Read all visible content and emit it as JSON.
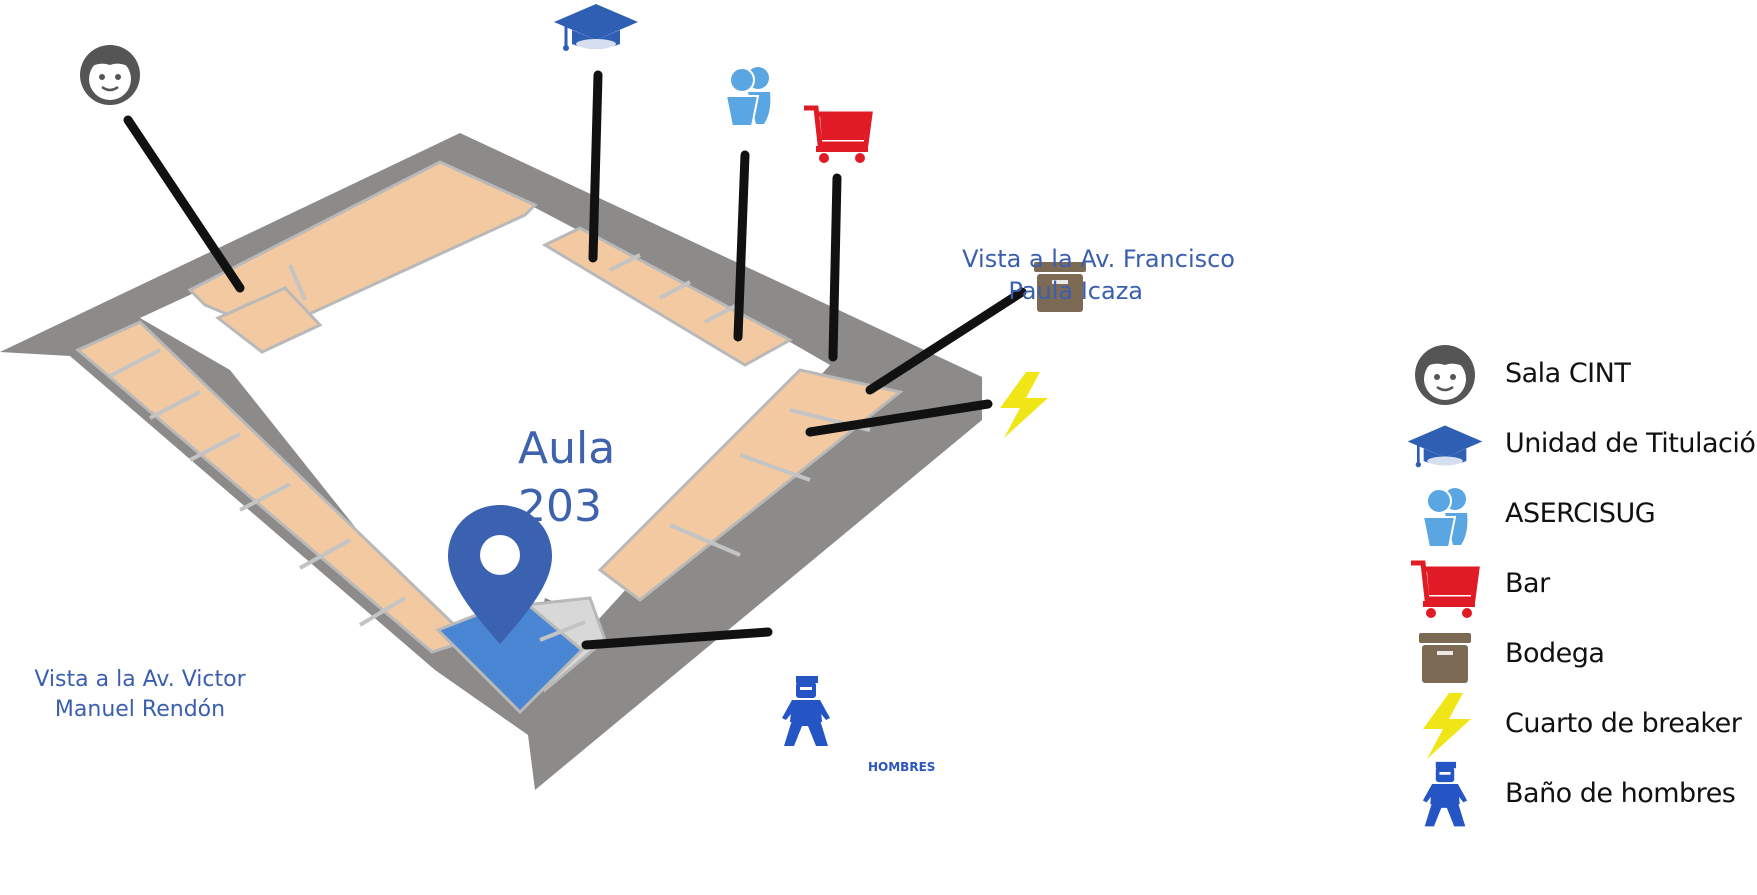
{
  "map": {
    "room_label": [
      "Aula",
      "203"
    ],
    "view_left": [
      "Vista a la Av.  Victor",
      "Manuel Rendón"
    ],
    "view_right": [
      "Vista a la Av.  Francisco",
      "Paula Icaza"
    ],
    "restroom_tag": "HOMBRES",
    "colors": {
      "roof": "#8c8b89",
      "floor": "#f2c9a1",
      "wall": "#c8c8c8",
      "highlight": "#4a86d4",
      "pin": "#3a62b0",
      "leader": "#111111",
      "face": "#555555",
      "grad_cap": "#2f5fb3",
      "people": "#5aa6e3",
      "cart": "#e11b25",
      "box": "#7d6a55",
      "bolt": "#f0e617",
      "worker": "#2555c4"
    }
  },
  "legend": [
    {
      "icon": "face-icon",
      "label": "Sala CINT"
    },
    {
      "icon": "graduation-cap-icon",
      "label": "Unidad de Titulación"
    },
    {
      "icon": "people-icon",
      "label": "ASERCISUG"
    },
    {
      "icon": "shopping-cart-icon",
      "label": "Bar"
    },
    {
      "icon": "box-icon",
      "label": "Bodega"
    },
    {
      "icon": "lightning-icon",
      "label": "Cuarto de breaker"
    },
    {
      "icon": "worker-icon",
      "label": "Baño de hombres"
    }
  ]
}
